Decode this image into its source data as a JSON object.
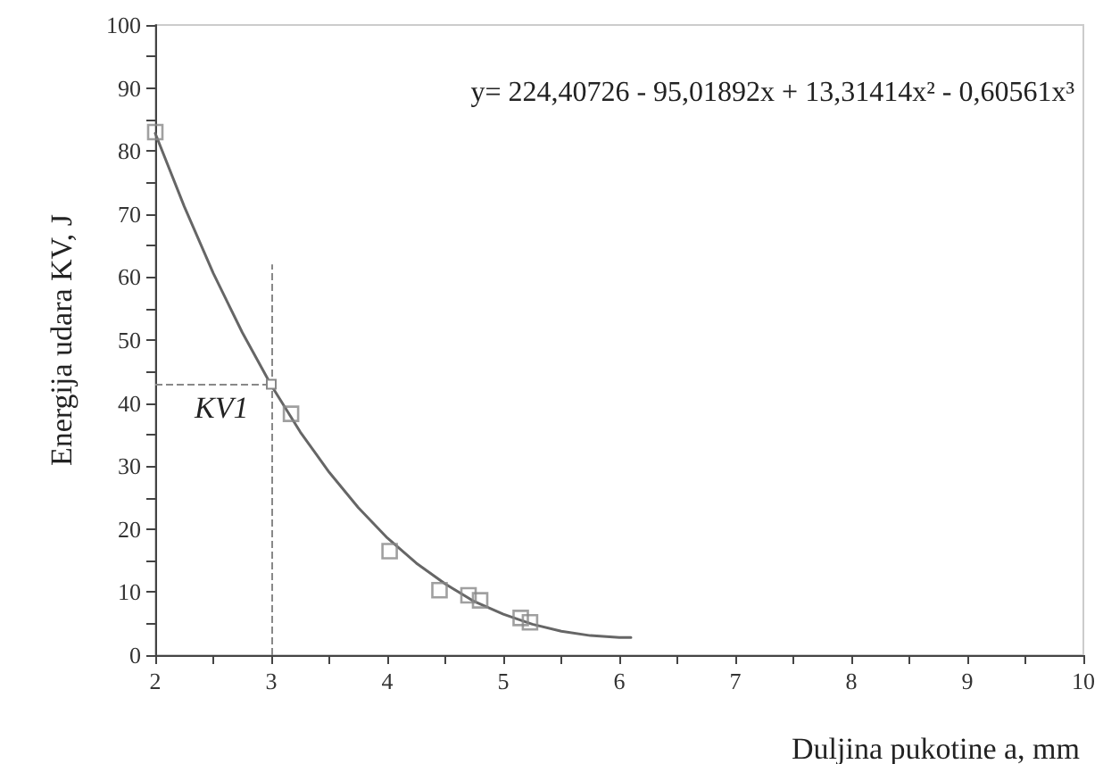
{
  "chart_data": {
    "type": "scatter",
    "xlabel": "Duljina pukotine a, mm",
    "ylabel": "Energija udara KV, J",
    "xlim": [
      2,
      10
    ],
    "xticks": [
      2,
      3,
      4,
      5,
      6,
      7,
      8,
      9,
      10
    ],
    "ylim": [
      0,
      100
    ],
    "yticks": [
      0,
      10,
      20,
      30,
      40,
      50,
      60,
      70,
      80,
      90,
      100
    ],
    "grid": false,
    "series": [
      {
        "marker": "square",
        "color": "#888888",
        "x": [
          2,
          3.17,
          4.02,
          4.45,
          4.7,
          4.8,
          5.15,
          5.23
        ],
        "values": [
          83,
          38.3,
          16.5,
          10.3,
          9.5,
          8.7,
          5.9,
          5.2
        ]
      },
      {
        "type": "line",
        "marker": "none",
        "line_style": "solid",
        "color": "#666666",
        "x": [
          2,
          2.25,
          2.5,
          2.75,
          3,
          3.25,
          3.5,
          3.75,
          4,
          4.25,
          4.5,
          4.75,
          5,
          5.25,
          5.5,
          5.75,
          6,
          6.1
        ],
        "values": [
          82.8,
          71.2,
          60.6,
          51.2,
          42.8,
          35.4,
          29,
          23.4,
          18.6,
          14.6,
          11.3,
          8.5,
          6.5,
          4.9,
          3.8,
          3.1,
          2.8,
          2.8
        ]
      }
    ],
    "ref_lines": [
      {
        "axis": "x",
        "value": 3,
        "line_style": "dashed",
        "color": "#888888"
      },
      {
        "axis": "y",
        "value": 43,
        "line_style": "dashed",
        "color": "#888888"
      }
    ],
    "annotations": [
      "y= 224,40726 - 95,01892x + 13,31414x² - 0,60561x³",
      {
        "text": "KV1",
        "x": 3,
        "y": 43
      }
    ]
  }
}
